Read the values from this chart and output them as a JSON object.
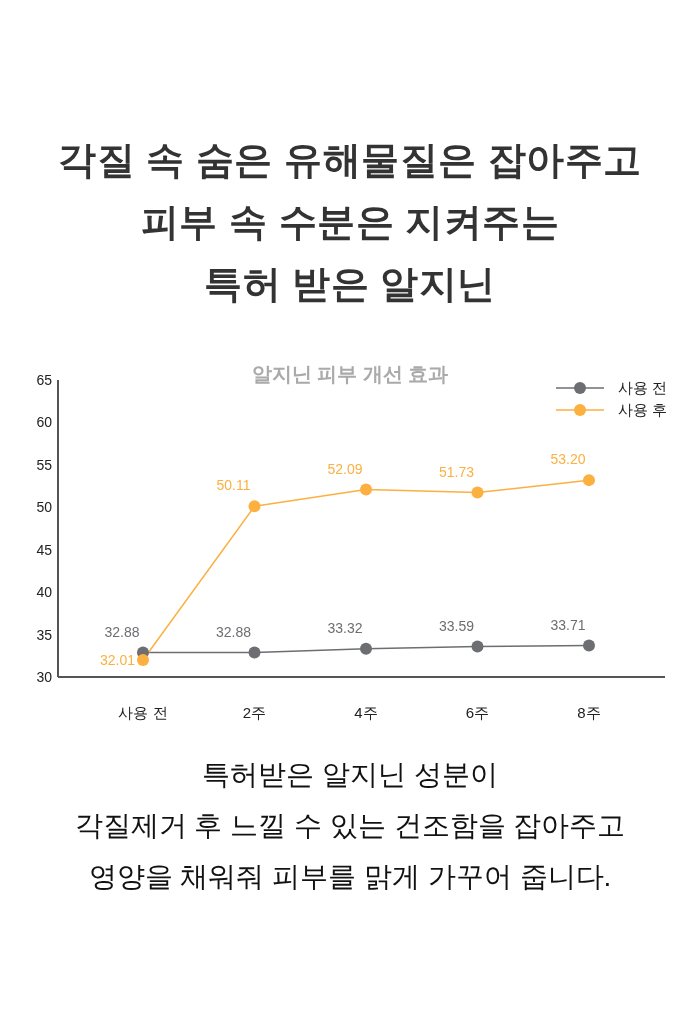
{
  "chart_data": {
    "type": "line",
    "title": "각질 속 숨은 유해물질은 잡아주고\n피부 속 수분은 지켜주는\n특허 받은 알지닌",
    "subtitle": "알지닌 피부 개선 효과",
    "categories": [
      "사용 전",
      "2주",
      "4주",
      "6주",
      "8주"
    ],
    "series": [
      {
        "name": "사용 전",
        "color": "#6d6e72",
        "values": [
          32.88,
          32.88,
          33.32,
          33.59,
          33.71
        ],
        "value_labels": [
          "32.88",
          "32.88",
          "33.32",
          "33.59",
          "33.71"
        ]
      },
      {
        "name": "사용 후",
        "color": "#fbb040",
        "values": [
          32.01,
          50.11,
          52.09,
          51.73,
          53.2
        ],
        "value_labels": [
          "32.01",
          "50.11",
          "52.09",
          "51.73",
          "53.20"
        ]
      }
    ],
    "ylim": [
      30,
      65
    ],
    "yticks": [
      30,
      35,
      40,
      45,
      50,
      55,
      60,
      65
    ],
    "legend": "top right",
    "marker": "circle",
    "line_style": "solid",
    "annotations": [
      "특허받은 알지닌 성분이\n각질제거 후 느낄 수 있는 건조함을 잡아주고\n영양을 채워줘 피부를 맑게 가꾸어 줍니다."
    ]
  }
}
